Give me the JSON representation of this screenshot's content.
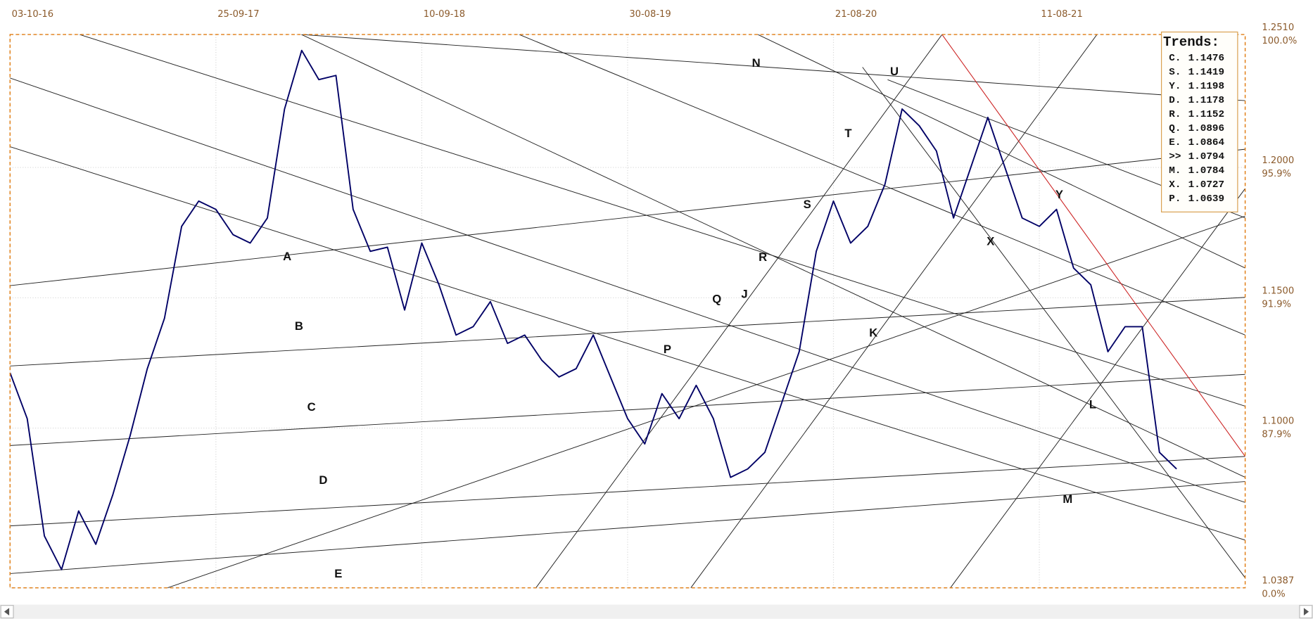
{
  "chart_data": {
    "type": "line",
    "categories": [
      "03-10-16",
      null,
      null,
      null,
      null,
      null,
      null,
      null,
      null,
      null,
      null,
      null,
      "25-09-17",
      null,
      null,
      null,
      null,
      null,
      null,
      null,
      null,
      null,
      null,
      null,
      "10-09-18",
      null,
      null,
      null,
      null,
      null,
      null,
      null,
      null,
      null,
      null,
      null,
      "30-08-19",
      null,
      null,
      null,
      null,
      null,
      null,
      null,
      null,
      null,
      null,
      null,
      "21-08-20",
      null,
      null,
      null,
      null,
      null,
      null,
      null,
      null,
      null,
      null,
      null,
      "11-08-21",
      null,
      null,
      null,
      null,
      null,
      null,
      null,
      null,
      null,
      null,
      null
    ],
    "series": [
      {
        "color": "#000066",
        "values": [
          1.1212,
          1.1036,
          1.0586,
          1.0457,
          1.0682,
          1.0554,
          1.0746,
          1.0971,
          1.1228,
          1.1421,
          1.1774,
          1.1871,
          1.1839,
          1.1742,
          1.171,
          1.1806,
          1.2224,
          1.2449,
          1.2337,
          1.2353,
          1.1839,
          1.1678,
          1.1694,
          1.1453,
          1.171,
          1.155,
          1.1357,
          1.1389,
          1.1485,
          1.1325,
          1.1357,
          1.126,
          1.1196,
          1.1228,
          1.1357,
          1.1196,
          1.1036,
          1.0939,
          1.1132,
          1.1036,
          1.1164,
          1.1036,
          1.0811,
          1.0843,
          1.0907,
          1.11,
          1.1293,
          1.1678,
          1.1871,
          1.171,
          1.1774,
          1.1935,
          1.2224,
          1.216,
          1.2063,
          1.1806,
          1.1999,
          1.2192,
          1.1999,
          1.1806,
          1.1774,
          1.1839,
          1.1614,
          1.155,
          1.1293,
          1.1389,
          1.1389,
          1.0907,
          1.0843,
          null,
          null,
          null
        ]
      }
    ],
    "ylim": [
      1.0387,
      1.251
    ],
    "yticks": [
      {
        "value": 1.0387,
        "label": "1.0387",
        "percent": "0.0%"
      },
      {
        "value": 1.1,
        "label": "1.1000",
        "percent": "87.9%"
      },
      {
        "value": 1.15,
        "label": "1.1500",
        "percent": "91.9%"
      },
      {
        "value": 1.2,
        "label": "1.2000",
        "percent": "95.9%"
      },
      {
        "value": 1.251,
        "label": "1.2510",
        "percent": "100.0%"
      }
    ],
    "grid": true,
    "annotations": [
      {
        "text": "N",
        "color": "#111111"
      },
      {
        "text": "U",
        "color": "#111111"
      },
      {
        "text": "T",
        "color": "#111111"
      },
      {
        "text": "S",
        "color": "#111111"
      },
      {
        "text": "Y",
        "color": "#cc0000"
      },
      {
        "text": "X",
        "color": "#111111"
      },
      {
        "text": "R",
        "color": "#111111"
      },
      {
        "text": "Q",
        "color": "#111111"
      },
      {
        "text": "J",
        "color": "#111111"
      },
      {
        "text": "A",
        "color": "#111111"
      },
      {
        "text": "B",
        "color": "#111111"
      },
      {
        "text": "P",
        "color": "#111111"
      },
      {
        "text": "K",
        "color": "#111111"
      },
      {
        "text": "C",
        "color": "#111111"
      },
      {
        "text": "L",
        "color": "#111111"
      },
      {
        "text": "D",
        "color": "#111111"
      },
      {
        "text": "M",
        "color": "#111111"
      },
      {
        "text": "E",
        "color": "#111111"
      }
    ],
    "trends": {
      "title": "Trends:",
      "rows": [
        {
          "name": "C.",
          "value": 1.1476,
          "color": "#111111"
        },
        {
          "name": "S.",
          "value": 1.1419,
          "color": "#111111"
        },
        {
          "name": "Y.",
          "value": 1.1198,
          "color": "#cc0000"
        },
        {
          "name": "D.",
          "value": 1.1178,
          "color": "#111111"
        },
        {
          "name": "R.",
          "value": 1.1152,
          "color": "#111111"
        },
        {
          "name": "Q.",
          "value": 1.0896,
          "color": "#111111"
        },
        {
          "name": "E.",
          "value": 1.0864,
          "color": "#111111"
        },
        {
          "name": ">>",
          "value": 1.0794,
          "color": "#111111"
        },
        {
          "name": "M.",
          "value": 1.0784,
          "color": "#111111"
        },
        {
          "name": "X.",
          "value": 1.0727,
          "color": "#111111"
        },
        {
          "name": "P.",
          "value": 1.0639,
          "color": "#111111"
        }
      ]
    }
  }
}
